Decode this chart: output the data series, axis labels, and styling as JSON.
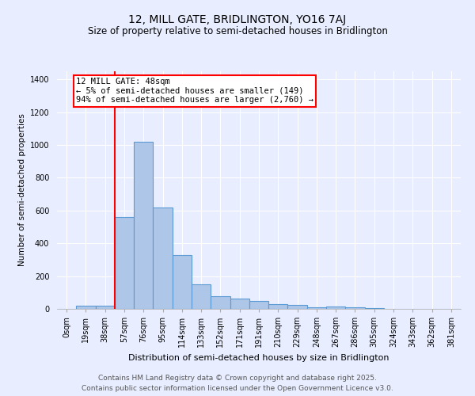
{
  "title": "12, MILL GATE, BRIDLINGTON, YO16 7AJ",
  "subtitle": "Size of property relative to semi-detached houses in Bridlington",
  "xlabel": "Distribution of semi-detached houses by size in Bridlington",
  "ylabel": "Number of semi-detached properties",
  "categories": [
    "0sqm",
    "19sqm",
    "38sqm",
    "57sqm",
    "76sqm",
    "95sqm",
    "114sqm",
    "133sqm",
    "152sqm",
    "171sqm",
    "191sqm",
    "210sqm",
    "229sqm",
    "248sqm",
    "267sqm",
    "286sqm",
    "305sqm",
    "324sqm",
    "343sqm",
    "362sqm",
    "381sqm"
  ],
  "values": [
    0,
    20,
    20,
    560,
    1020,
    620,
    330,
    150,
    75,
    65,
    50,
    30,
    25,
    12,
    15,
    8,
    5,
    0,
    0,
    0,
    0
  ],
  "bar_color": "#aec6e8",
  "bar_edge_color": "#5b9bd5",
  "bar_edge_width": 0.8,
  "vline_x": 2.5,
  "vline_color": "red",
  "annotation_title": "12 MILL GATE: 48sqm",
  "annotation_line1": "← 5% of semi-detached houses are smaller (149)",
  "annotation_line2": "94% of semi-detached houses are larger (2,760) →",
  "annotation_box_color": "white",
  "annotation_box_edge": "red",
  "ylim": [
    0,
    1450
  ],
  "yticks": [
    0,
    200,
    400,
    600,
    800,
    1000,
    1200,
    1400
  ],
  "background_color": "#e8eeff",
  "footer_line1": "Contains HM Land Registry data © Crown copyright and database right 2025.",
  "footer_line2": "Contains public sector information licensed under the Open Government Licence v3.0.",
  "title_fontsize": 10,
  "subtitle_fontsize": 8.5,
  "xlabel_fontsize": 8,
  "ylabel_fontsize": 7.5,
  "tick_fontsize": 7,
  "footer_fontsize": 6.5,
  "annot_fontsize": 7.5
}
